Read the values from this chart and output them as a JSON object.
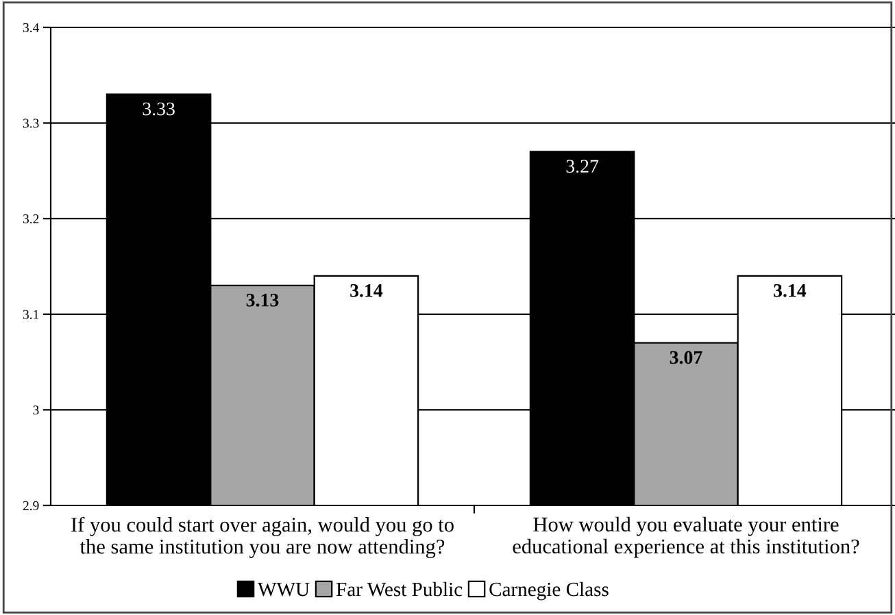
{
  "chart_data": {
    "type": "bar",
    "categories": [
      "If you could start over again, would you go to\nthe same institution you are now attending?",
      "How would you evaluate your entire\neducational experience at this institution?"
    ],
    "series": [
      {
        "name": "WWU",
        "color": "#000000",
        "values": [
          3.33,
          3.27
        ]
      },
      {
        "name": "Far West Public",
        "color": "#a6a6a6",
        "values": [
          3.13,
          3.07
        ]
      },
      {
        "name": "Carnegie Class",
        "color": "#ffffff",
        "values": [
          3.14,
          3.14
        ]
      }
    ],
    "ylim": [
      2.9,
      3.4
    ],
    "yticks": [
      {
        "value": 2.9,
        "label": "2.9"
      },
      {
        "value": 3.0,
        "label": "3"
      },
      {
        "value": 3.1,
        "label": "3.1"
      },
      {
        "value": 3.2,
        "label": "3.2"
      },
      {
        "value": 3.3,
        "label": "3.3"
      },
      {
        "value": 3.4,
        "label": "3.4"
      }
    ],
    "grid": "y",
    "legend": "bottom",
    "data_labels": true
  }
}
